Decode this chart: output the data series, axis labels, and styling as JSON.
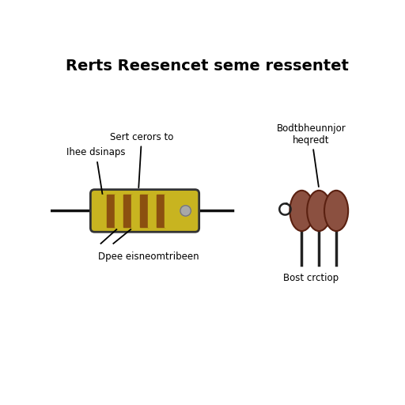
{
  "title": "Rerts Reesencet seme ressentet",
  "title_fontsize": 14,
  "title_fontweight": "bold",
  "bg_color": "#ffffff",
  "label_top_left": "Ihee dsinaps",
  "label_top_center": "Sert cerors to",
  "label_top_right": "Bodtbheunnjor\nheqredt",
  "label_bottom_left": "Dpee eisneomtribeen",
  "label_bottom_right": "Bost crctiop",
  "resistor_body_color": "#c8b420",
  "resistor_body_outline": "#333333",
  "band_colors_alt": [
    "#c8b420",
    "#8B5010",
    "#c8b420",
    "#8B5010",
    "#c8b420",
    "#8B5010",
    "#c8b420",
    "#8B5010",
    "#c8b420"
  ],
  "lead_color": "#111111",
  "dot_color": "#a8a8a8",
  "wound_body_color": "#8B5040",
  "wound_wire_color": "#222222",
  "wound_edge_color": "#5a2010"
}
